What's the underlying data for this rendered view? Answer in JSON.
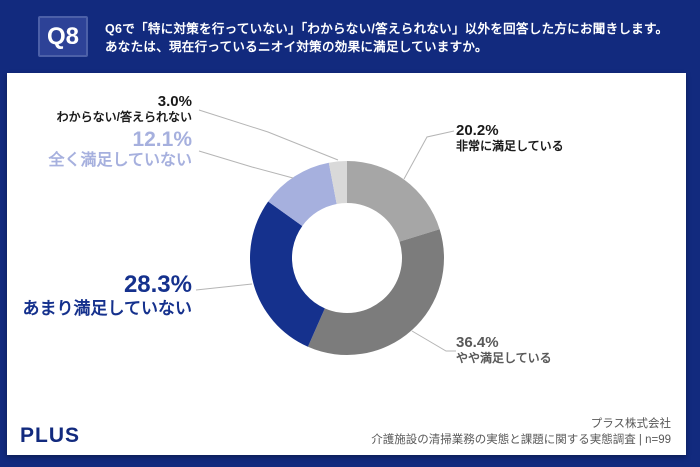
{
  "header": {
    "badge": "Q8",
    "question_line1": "Q6で「特に対策を行っていない」「わからない/答えられない」以外を回答した方にお聞きします。",
    "question_line2": "あなたは、現在行っているニオイ対策の効果に満足していますか。"
  },
  "chart_data": {
    "type": "pie",
    "donut": true,
    "start_angle_deg": 0,
    "direction": "clockwise",
    "title": "",
    "segments": [
      {
        "label": "非常に満足している",
        "pct": "20.2%",
        "value": 20.2,
        "color": "#a6a6a6",
        "label_color": "#1a1a1a"
      },
      {
        "label": "やや満足している",
        "pct": "36.4%",
        "value": 36.4,
        "color": "#7c7c7c",
        "label_color": "#595959"
      },
      {
        "label": "あまり満足していない",
        "pct": "28.3%",
        "value": 28.3,
        "color": "#15318d",
        "label_color": "#15318d"
      },
      {
        "label": "全く満足していない",
        "pct": "12.1%",
        "value": 12.1,
        "color": "#a6b0de",
        "label_color": "#a6b0de"
      },
      {
        "label": "わからない/答えられない",
        "pct": "3.0%",
        "value": 3.0,
        "color": "#d9d9d9",
        "label_color": "#1a1a1a"
      }
    ]
  },
  "footer": {
    "logo": "PLUS",
    "company": "プラス株式会社",
    "survey": "介護施設の清掃業務の実態と課題に関する実態調査 | n=99"
  },
  "colors": {
    "frame": "#122a7e",
    "badge_bg": "#2d4297",
    "card_bg": "#ffffff",
    "leader_line": "#b5b5b5"
  }
}
